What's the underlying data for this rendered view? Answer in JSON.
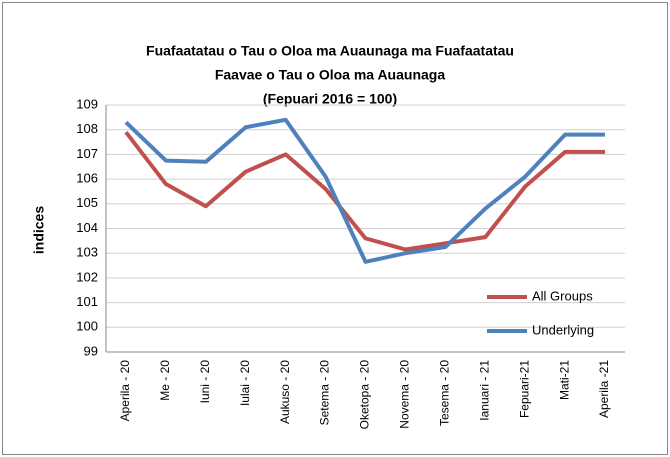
{
  "chart_data": {
    "type": "line",
    "title": [
      "Fuafaatatau o Tau o Oloa ma Auaunaga  ma Fuafaatatau",
      "Faavae o Tau o Oloa ma Auaunaga",
      "(Fepuari 2016 = 100)"
    ],
    "y_label": "indices",
    "categories": [
      "Aperila - 20",
      "Me - 20",
      "Iuni - 20",
      "Iulai - 20",
      "Aukuso - 20",
      "Setema - 20",
      "Oketopa - 20",
      "Novema - 20",
      "Tesema - 20",
      "Ianuari - 21",
      "Fepuari-21",
      "Mati-21",
      "Aperila -21"
    ],
    "series": [
      {
        "name": "All Groups",
        "color": "#c0504d",
        "values": [
          107.9,
          105.8,
          104.9,
          106.3,
          107.0,
          105.6,
          103.6,
          103.15,
          103.4,
          103.65,
          105.7,
          107.1,
          107.1
        ]
      },
      {
        "name": "Underlying",
        "color": "#4f81bd",
        "values": [
          108.3,
          106.75,
          106.7,
          108.1,
          108.4,
          106.1,
          102.65,
          103.0,
          103.25,
          104.8,
          106.1,
          107.8,
          107.8
        ]
      }
    ],
    "ylim": [
      99,
      109
    ],
    "yticks": [
      99,
      100,
      101,
      102,
      103,
      104,
      105,
      106,
      107,
      108,
      109
    ],
    "grid": true,
    "legend": "lower right"
  }
}
